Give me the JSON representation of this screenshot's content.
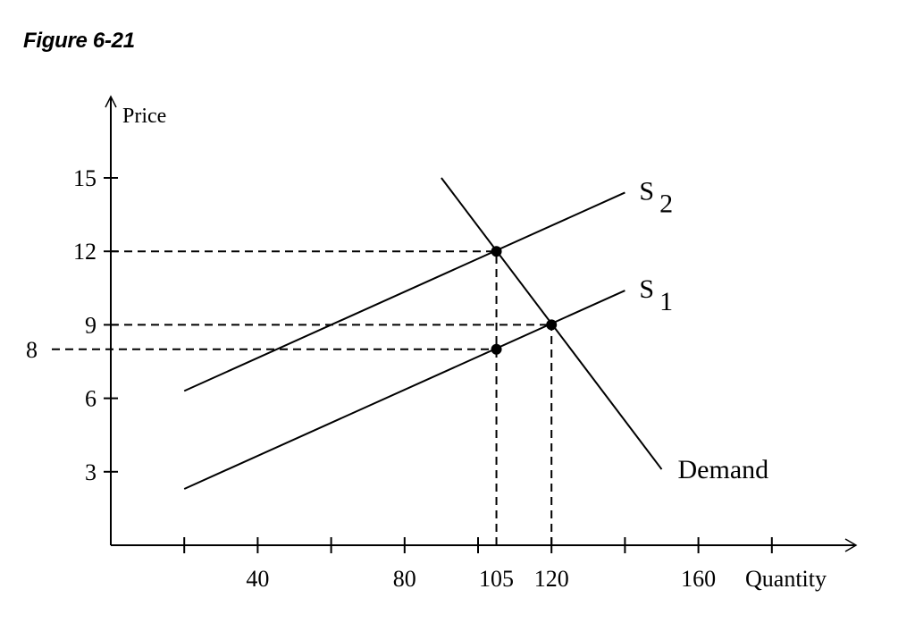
{
  "figure": {
    "title": "Figure 6-21"
  },
  "chart_data": {
    "type": "line",
    "title": "Figure 6-21",
    "xlabel": "Quantity",
    "ylabel": "Price",
    "xlim": [
      0,
      200
    ],
    "ylim": [
      0,
      18
    ],
    "x_ticks": [
      20,
      40,
      60,
      80,
      100,
      120,
      140,
      160,
      180
    ],
    "x_tick_labels": [
      {
        "value": 40,
        "label": "40"
      },
      {
        "value": 80,
        "label": "80"
      },
      {
        "value": 105,
        "label": "105"
      },
      {
        "value": 120,
        "label": "120"
      },
      {
        "value": 160,
        "label": "160"
      }
    ],
    "y_ticks": [
      3,
      6,
      9,
      12,
      15
    ],
    "y_tick_labels": [
      {
        "value": 15,
        "label": "15"
      },
      {
        "value": 12,
        "label": "12"
      },
      {
        "value": 9,
        "label": "9"
      },
      {
        "value": 6,
        "label": "6"
      },
      {
        "value": 3,
        "label": "3"
      }
    ],
    "extra_y_label": {
      "value": 8,
      "label": "8"
    },
    "grid": false,
    "series": [
      {
        "name": "S2",
        "label": "S",
        "subscript": "2",
        "points": [
          [
            20,
            6.3
          ],
          [
            140,
            14.4
          ]
        ]
      },
      {
        "name": "S1",
        "label": "S",
        "subscript": "1",
        "points": [
          [
            20,
            2.3
          ],
          [
            140,
            10.4
          ]
        ]
      },
      {
        "name": "Demand",
        "label": "Demand",
        "points": [
          [
            90,
            15
          ],
          [
            150,
            3.1
          ]
        ]
      }
    ],
    "marked_points": [
      {
        "x": 105,
        "y": 12,
        "note": "S2 ∩ Demand"
      },
      {
        "x": 120,
        "y": 9,
        "note": "S1 ∩ Demand"
      },
      {
        "x": 105,
        "y": 8,
        "note": "on S1 at Q=105"
      }
    ],
    "reference_lines": [
      {
        "type": "horizontal",
        "y": 12,
        "x_to": 105
      },
      {
        "type": "horizontal",
        "y": 9,
        "x_to": 120
      },
      {
        "type": "horizontal",
        "y": 8,
        "x_to": 105
      },
      {
        "type": "vertical",
        "x": 105,
        "y_to": 12
      },
      {
        "type": "vertical",
        "x": 120,
        "y_to": 9
      }
    ]
  }
}
